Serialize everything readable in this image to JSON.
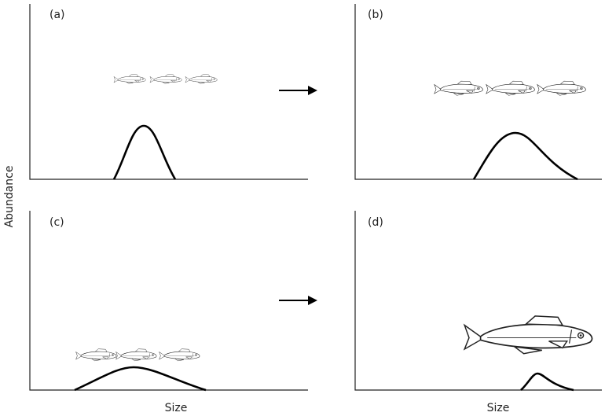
{
  "panels": [
    {
      "label": "(a)"
    },
    {
      "label": "(b)"
    },
    {
      "label": "(c)"
    },
    {
      "label": "(d)"
    }
  ],
  "y_axis_label": "Abundance",
  "x_axis_labels": [
    "Size",
    "Size"
  ]
}
